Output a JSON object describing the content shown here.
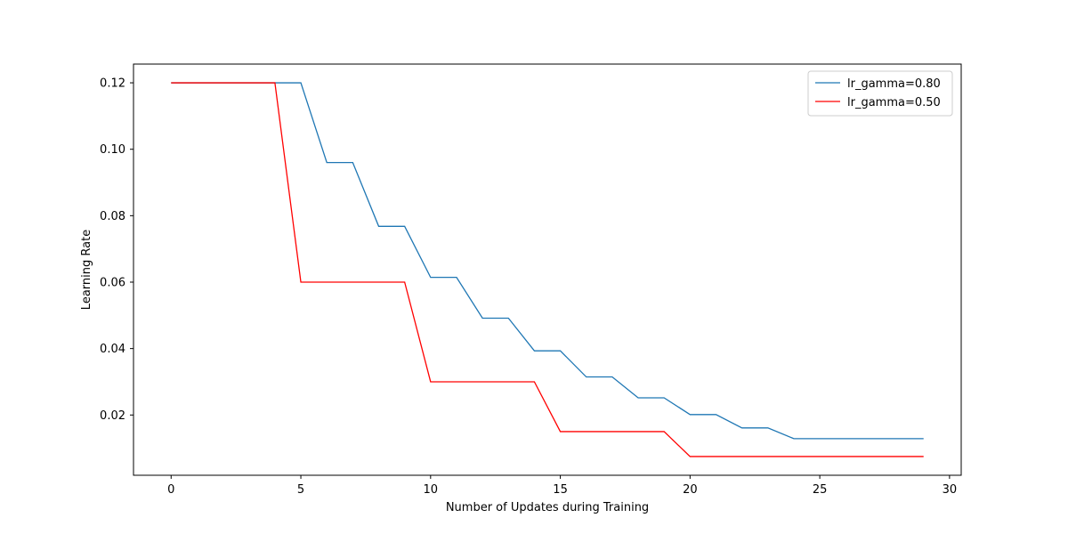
{
  "chart_data": {
    "type": "line",
    "title": "",
    "xlabel": "Number of Updates during Training",
    "ylabel": "Learning Rate",
    "xlim": [
      -1.45,
      30.45
    ],
    "ylim": [
      0.00186,
      0.12564
    ],
    "xticks": [
      0,
      5,
      10,
      15,
      20,
      25,
      30
    ],
    "xtick_labels": [
      "0",
      "5",
      "10",
      "15",
      "20",
      "25",
      "30"
    ],
    "yticks": [
      0.02,
      0.04,
      0.06,
      0.08,
      0.1,
      0.12
    ],
    "ytick_labels": [
      "0.02",
      "0.04",
      "0.06",
      "0.08",
      "0.10",
      "0.12"
    ],
    "grid": false,
    "legend_position": "upper right",
    "x": [
      0,
      1,
      2,
      3,
      4,
      5,
      6,
      7,
      8,
      9,
      10,
      11,
      12,
      13,
      14,
      15,
      16,
      17,
      18,
      19,
      20,
      21,
      22,
      23,
      24,
      25,
      26,
      27,
      28,
      29
    ],
    "series": [
      {
        "name": "lr_gamma=0.80",
        "color": "#1f77b4",
        "values": [
          0.12,
          0.12,
          0.12,
          0.12,
          0.12,
          0.12,
          0.096,
          0.096,
          0.0768,
          0.0768,
          0.06144,
          0.06144,
          0.049152,
          0.049152,
          0.0393216,
          0.0393216,
          0.0314573,
          0.0314573,
          0.0251658,
          0.0251658,
          0.0201327,
          0.0201327,
          0.0161061,
          0.0161061,
          0.0128849,
          0.0128849,
          0.0128849,
          0.0128849,
          0.0128849,
          0.0128849
        ]
      },
      {
        "name": "lr_gamma=0.50",
        "color": "#ff0000",
        "values": [
          0.12,
          0.12,
          0.12,
          0.12,
          0.12,
          0.06,
          0.06,
          0.06,
          0.06,
          0.06,
          0.03,
          0.03,
          0.03,
          0.03,
          0.03,
          0.015,
          0.015,
          0.015,
          0.015,
          0.015,
          0.0075,
          0.0075,
          0.0075,
          0.0075,
          0.0075,
          0.0075,
          0.0075,
          0.0075,
          0.0075,
          0.0075
        ]
      }
    ]
  }
}
